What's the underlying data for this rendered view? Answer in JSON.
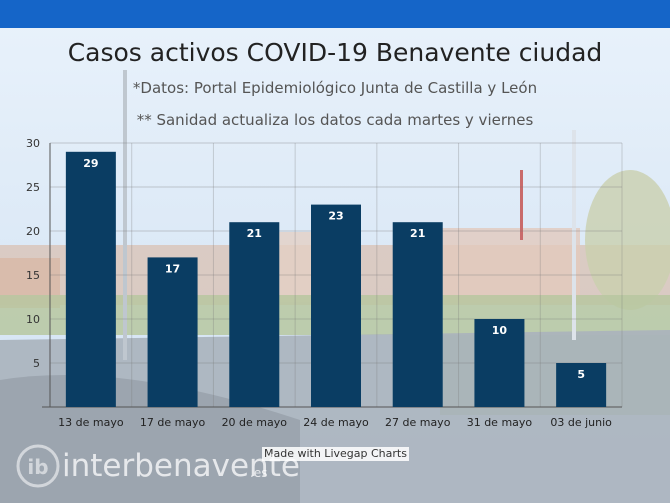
{
  "chart_data": {
    "type": "bar",
    "title": "Casos activos COVID-19 Benavente ciudad",
    "subtitle_1": "*Datos: Portal Epidemiológico Junta de Castilla y León",
    "subtitle_2": "** Sanidad actualiza los datos cada martes y viernes",
    "categories": [
      "13 de mayo",
      "17 de mayo",
      "20 de mayo",
      "24 de mayo",
      "27 de mayo",
      "31 de mayo",
      "03 de junio"
    ],
    "values": [
      29,
      17,
      21,
      23,
      21,
      10,
      5
    ],
    "ylim": [
      0,
      30
    ],
    "yticks": [
      5,
      10,
      15,
      20,
      25,
      30
    ],
    "xlabel": "",
    "ylabel": "",
    "grid": true,
    "bar_color": "#0a3d63"
  },
  "credit": "Made with Livegap Charts",
  "watermark": {
    "text": "interbenavente",
    "tld": ".es",
    "logo_letters": "ib"
  }
}
